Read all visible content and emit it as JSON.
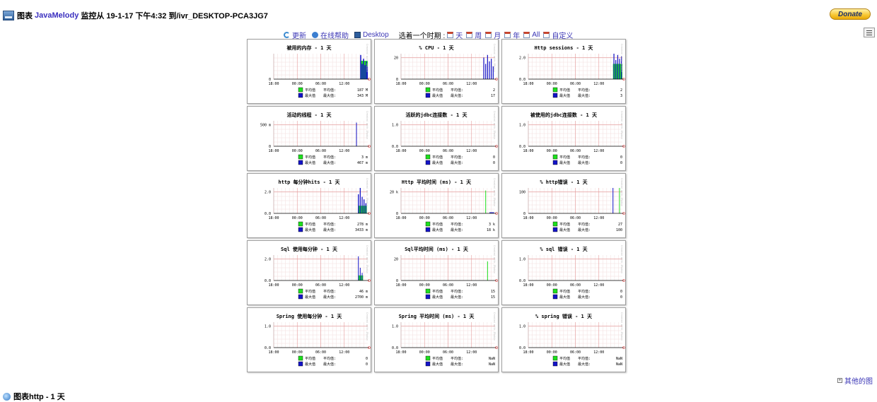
{
  "header": {
    "title_prefix": "图表",
    "brand": "JavaMelody",
    "title_suffix": "监控从 19-1-17 下午4:32 到/ivr_DESKTOP-PCA3JG7",
    "donate_label": "Donate"
  },
  "nav": {
    "refresh": "更新",
    "help": "在线帮助",
    "desktop": "Desktop",
    "period_label": "选着一个时期 :",
    "periods": [
      "天",
      "周",
      "月",
      "年",
      "All",
      "自定义"
    ]
  },
  "other_charts": "其他的图",
  "footer_title": "图表http - 1 天",
  "legend": {
    "avg": "平均值",
    "avg_label": "平均值:",
    "max": "最大值",
    "max_label": "最大值:"
  },
  "side_watermark": "Created with JRobin",
  "colors": {
    "avg": "#1ee01e",
    "max": "#1414c8",
    "grid_major": "#e59a9a",
    "grid_minor": "#f2dede"
  },
  "charts": [
    {
      "title": "被用的内存 - 1 天",
      "ymax_label": "",
      "zero_label": "0",
      "xticks": [
        "18:00",
        "00:00",
        "06:00",
        "12:00"
      ],
      "avg": "187 M",
      "max": "343 M",
      "pattern": "memory"
    },
    {
      "title": "% CPU - 1 天",
      "ymax_label": "20",
      "zero_label": "0",
      "xticks": [
        "18:00",
        "00:00",
        "06:00",
        "12:00"
      ],
      "avg": "2",
      "max": "17",
      "pattern": "cpu"
    },
    {
      "title": "Http sessions - 1 天",
      "ymax_label": "2.0",
      "zero_label": "0.0",
      "xticks": [
        "18:00",
        "00:00",
        "06:00",
        "12:00"
      ],
      "avg": "2",
      "max": "3",
      "pattern": "sessions"
    },
    {
      "title": "活动的线程 - 1 天",
      "ymax_label": "500 m",
      "zero_label": "0",
      "xticks": [
        "18:00",
        "00:00",
        "06:00",
        "12:00"
      ],
      "avg": "3 m",
      "max": "467 m",
      "pattern": "threads"
    },
    {
      "title": "活跃的jdbc连接数 - 1 天",
      "ymax_label": "1.0",
      "zero_label": "0.0",
      "xticks": [
        "18:00",
        "00:00",
        "06:00",
        "12:00"
      ],
      "avg": "0",
      "max": "0",
      "pattern": "none"
    },
    {
      "title": "被使用的jdbc连接数 - 1 天",
      "ymax_label": "1.0",
      "zero_label": "0.0",
      "xticks": [
        "18:00",
        "00:00",
        "06:00",
        "12:00"
      ],
      "avg": "0",
      "max": "0",
      "pattern": "none"
    },
    {
      "title": "http 每分钟hits - 1 天",
      "ymax_label": "2.0",
      "zero_label": "0.0",
      "xticks": [
        "18:00",
        "00:00",
        "06:00",
        "12:00"
      ],
      "avg": "278 m",
      "max": "3433 m",
      "pattern": "hits"
    },
    {
      "title": "Http 平均时间 (ms) - 1 天",
      "ymax_label": "20 k",
      "zero_label": "0",
      "xticks": [
        "18:00",
        "00:00",
        "06:00",
        "12:00"
      ],
      "avg": "3 k",
      "max": "18 k",
      "pattern": "httptime"
    },
    {
      "title": "% http错误 - 1 天",
      "ymax_label": "100",
      "zero_label": "0",
      "xticks": [
        "18:00",
        "00:00",
        "06:00",
        "12:00"
      ],
      "avg": "27",
      "max": "100",
      "pattern": "httperr"
    },
    {
      "title": "Sql 使用每分钟 - 1 天",
      "ymax_label": "2.0",
      "zero_label": "0.0",
      "xticks": [
        "18:00",
        "00:00",
        "06:00",
        "12:00"
      ],
      "avg": "46 m",
      "max": "2700 m",
      "pattern": "sql"
    },
    {
      "title": "Sql平均时间 (ms) - 1 天",
      "ymax_label": "20",
      "zero_label": "0",
      "xticks": [
        "18:00",
        "00:00",
        "06:00",
        "12:00"
      ],
      "avg": "15",
      "max": "15",
      "pattern": "sqltime"
    },
    {
      "title": "% sql 错误 - 1 天",
      "ymax_label": "1.0",
      "zero_label": "0.0",
      "xticks": [
        "18:00",
        "00:00",
        "06:00",
        "12:00"
      ],
      "avg": "0",
      "max": "0",
      "pattern": "none"
    },
    {
      "title": "Spring 使用每分钟 - 1 天",
      "ymax_label": "1.0",
      "zero_label": "0.0",
      "xticks": [
        "18:00",
        "00:00",
        "06:00",
        "12:00"
      ],
      "avg": "0",
      "max": "0",
      "pattern": "none"
    },
    {
      "title": "Spring 平均时间 (ms) - 1 天",
      "ymax_label": "1.0",
      "zero_label": "0.0",
      "xticks": [
        "18:00",
        "00:00",
        "06:00",
        "12:00"
      ],
      "avg": "NaN",
      "max": "NaN",
      "pattern": "none"
    },
    {
      "title": "% spring 错误 - 1 天",
      "ymax_label": "1.0",
      "zero_label": "0.0",
      "xticks": [
        "18:00",
        "00:00",
        "06:00",
        "12:00"
      ],
      "avg": "NaN",
      "max": "NaN",
      "pattern": "none"
    }
  ]
}
